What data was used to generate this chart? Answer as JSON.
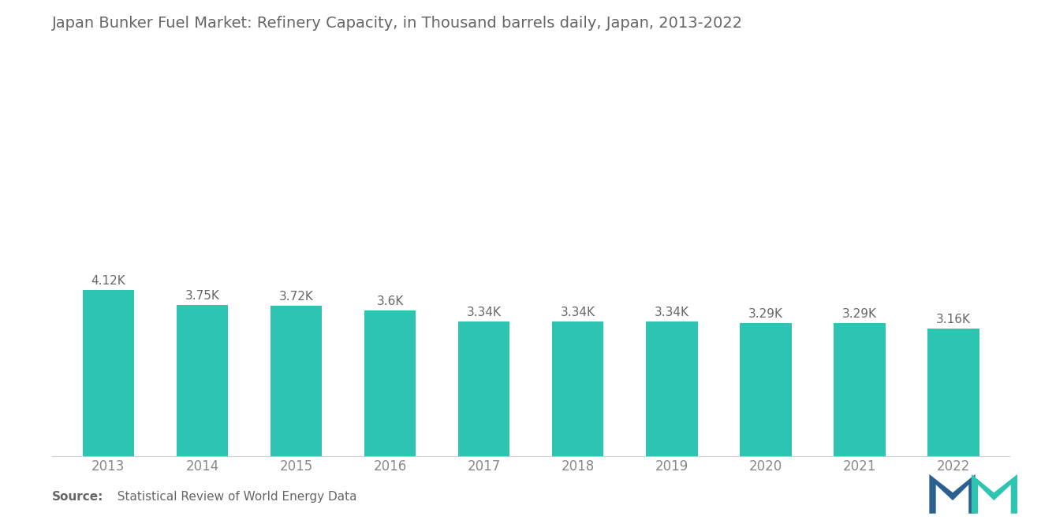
{
  "title": "Japan Bunker Fuel Market: Refinery Capacity, in Thousand barrels daily, Japan, 2013-2022",
  "years": [
    2013,
    2014,
    2015,
    2016,
    2017,
    2018,
    2019,
    2020,
    2021,
    2022
  ],
  "values": [
    4120,
    3750,
    3720,
    3600,
    3340,
    3340,
    3340,
    3290,
    3290,
    3160
  ],
  "labels": [
    "4.12K",
    "3.75K",
    "3.72K",
    "3.6K",
    "3.34K",
    "3.34K",
    "3.34K",
    "3.29K",
    "3.29K",
    "3.16K"
  ],
  "bar_color": "#2DC4B2",
  "background_color": "#ffffff",
  "title_fontsize": 14,
  "title_color": "#666666",
  "label_fontsize": 11,
  "label_color": "#666666",
  "tick_fontsize": 12,
  "tick_color": "#888888",
  "source_bold": "Source:",
  "source_text": "  Statistical Review of World Energy Data",
  "source_fontsize": 11,
  "ylim": [
    0,
    6500
  ],
  "bar_width": 0.55
}
